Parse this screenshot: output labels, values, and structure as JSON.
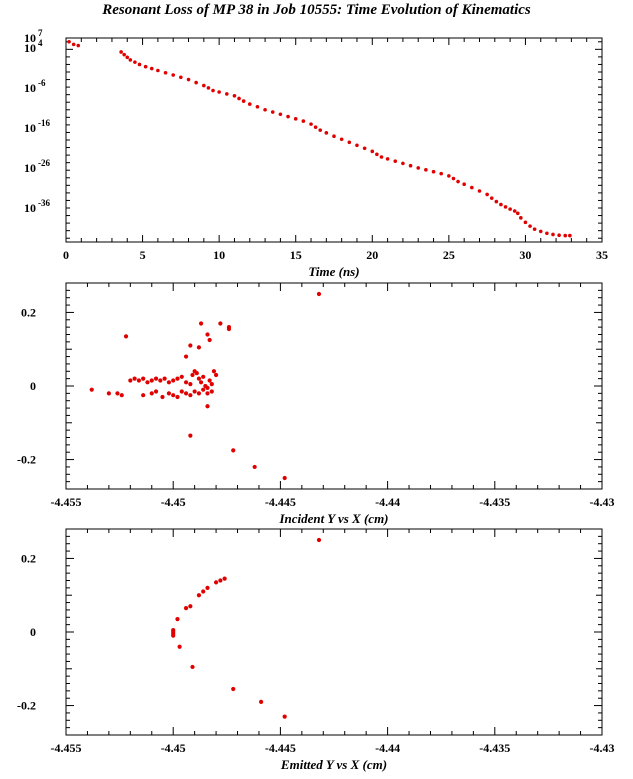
{
  "title": "Resonant Loss of MP 38 in Job 10555: Time Evolution of Kinematics",
  "colors": {
    "points": "#e00000",
    "axes": "#000000"
  },
  "chart_data": [
    {
      "type": "scatter",
      "name": "time_plot",
      "xlabel": "Time (ns)",
      "ylabel": "",
      "y_scale": "log",
      "xlim": [
        0,
        35
      ],
      "ylim_log10": [
        -47,
        7
      ],
      "x_ticks": [
        "0",
        "5",
        "10",
        "15",
        "20",
        "25",
        "30",
        "35"
      ],
      "y_ticks": [
        {
          "base": "10",
          "exp": "7"
        },
        {
          "base": "10",
          "exp": "4"
        },
        {
          "base": "10",
          "exp": "-6"
        },
        {
          "base": "10",
          "exp": "-16"
        },
        {
          "base": "10",
          "exp": "-26"
        },
        {
          "base": "10",
          "exp": "-36"
        }
      ],
      "points_log10": [
        [
          0.2,
          6.0
        ],
        [
          0.5,
          5.3
        ],
        [
          0.8,
          5.0
        ],
        [
          3.6,
          3.3
        ],
        [
          3.8,
          2.6
        ],
        [
          4.0,
          1.9
        ],
        [
          4.2,
          1.2
        ],
        [
          4.5,
          0.6
        ],
        [
          4.8,
          0.0
        ],
        [
          5.2,
          -0.6
        ],
        [
          5.6,
          -1.1
        ],
        [
          6.0,
          -1.6
        ],
        [
          6.5,
          -2.2
        ],
        [
          7.0,
          -2.8
        ],
        [
          7.5,
          -3.4
        ],
        [
          8.0,
          -4.0
        ],
        [
          8.5,
          -4.8
        ],
        [
          9.0,
          -5.6
        ],
        [
          9.3,
          -6.2
        ],
        [
          9.6,
          -6.9
        ],
        [
          10.0,
          -7.3
        ],
        [
          10.5,
          -7.8
        ],
        [
          11.0,
          -8.3
        ],
        [
          11.3,
          -9.0
        ],
        [
          11.6,
          -9.7
        ],
        [
          12.0,
          -10.5
        ],
        [
          12.5,
          -11.2
        ],
        [
          13.0,
          -12.0
        ],
        [
          13.5,
          -12.6
        ],
        [
          14.0,
          -13.2
        ],
        [
          14.5,
          -13.8
        ],
        [
          15.0,
          -14.4
        ],
        [
          15.5,
          -15.0
        ],
        [
          16.0,
          -15.8
        ],
        [
          16.3,
          -16.6
        ],
        [
          16.6,
          -17.4
        ],
        [
          17.0,
          -18.1
        ],
        [
          17.5,
          -19.0
        ],
        [
          18.0,
          -19.8
        ],
        [
          18.5,
          -20.6
        ],
        [
          19.0,
          -21.4
        ],
        [
          19.5,
          -22.2
        ],
        [
          20.0,
          -23.0
        ],
        [
          20.3,
          -23.8
        ],
        [
          20.6,
          -24.5
        ],
        [
          21.0,
          -25.0
        ],
        [
          21.5,
          -25.6
        ],
        [
          22.0,
          -26.2
        ],
        [
          22.5,
          -26.8
        ],
        [
          23.0,
          -27.4
        ],
        [
          23.5,
          -27.9
        ],
        [
          24.0,
          -28.4
        ],
        [
          24.5,
          -28.9
        ],
        [
          25.0,
          -29.5
        ],
        [
          25.3,
          -30.2
        ],
        [
          25.6,
          -31.0
        ],
        [
          26.0,
          -31.7
        ],
        [
          26.5,
          -32.6
        ],
        [
          27.0,
          -33.5
        ],
        [
          27.5,
          -34.4
        ],
        [
          27.8,
          -35.4
        ],
        [
          28.1,
          -36.3
        ],
        [
          28.4,
          -37.1
        ],
        [
          28.7,
          -37.7
        ],
        [
          29.0,
          -38.3
        ],
        [
          29.3,
          -38.8
        ],
        [
          29.5,
          -39.4
        ],
        [
          29.7,
          -40.6
        ],
        [
          30.0,
          -41.8
        ],
        [
          30.3,
          -42.8
        ],
        [
          30.6,
          -43.6
        ],
        [
          31.0,
          -44.2
        ],
        [
          31.4,
          -44.7
        ],
        [
          31.8,
          -45.0
        ],
        [
          32.2,
          -45.2
        ],
        [
          32.6,
          -45.3
        ],
        [
          32.9,
          -45.3
        ]
      ]
    },
    {
      "type": "scatter",
      "name": "incident_plot",
      "xlabel": "Incident Y vs X (cm)",
      "ylabel": "",
      "xlim": [
        -4.455,
        -4.43
      ],
      "ylim": [
        -0.28,
        0.28
      ],
      "x_ticks": [
        -4.455,
        -4.45,
        -4.445,
        -4.44,
        -4.435,
        -4.43
      ],
      "x_tick_labels": [
        "-4.455",
        "-4.45",
        "-4.445",
        "-4.44",
        "-4.435",
        "-4.43"
      ],
      "y_ticks": [
        0.2,
        0,
        -0.2
      ],
      "y_tick_labels": [
        "0.2",
        "0",
        "-0.2"
      ],
      "points": [
        [
          -4.4432,
          0.25
        ],
        [
          -4.4522,
          0.135
        ],
        [
          -4.4487,
          0.17
        ],
        [
          -4.4478,
          0.17
        ],
        [
          -4.4474,
          0.16
        ],
        [
          -4.4474,
          0.155
        ],
        [
          -4.4484,
          0.14
        ],
        [
          -4.4483,
          0.125
        ],
        [
          -4.4488,
          0.105
        ],
        [
          -4.4492,
          0.11
        ],
        [
          -4.4494,
          0.08
        ],
        [
          -4.4538,
          -0.01
        ],
        [
          -4.453,
          -0.02
        ],
        [
          -4.4524,
          -0.025
        ],
        [
          -4.4526,
          -0.02
        ],
        [
          -4.452,
          0.015
        ],
        [
          -4.4518,
          0.02
        ],
        [
          -4.4516,
          0.015
        ],
        [
          -4.4514,
          0.02
        ],
        [
          -4.4512,
          0.01
        ],
        [
          -4.451,
          0.015
        ],
        [
          -4.4508,
          0.02
        ],
        [
          -4.4506,
          0.015
        ],
        [
          -4.4504,
          0.02
        ],
        [
          -4.4502,
          0.01
        ],
        [
          -4.45,
          0.015
        ],
        [
          -4.4498,
          0.02
        ],
        [
          -4.4496,
          0.025
        ],
        [
          -4.4494,
          0.01
        ],
        [
          -4.4492,
          0.005
        ],
        [
          -4.4491,
          0.03
        ],
        [
          -4.449,
          0.04
        ],
        [
          -4.4489,
          0.035
        ],
        [
          -4.4488,
          0.02
        ],
        [
          -4.4487,
          0.01
        ],
        [
          -4.4486,
          0.025
        ],
        [
          -4.4485,
          0.0
        ],
        [
          -4.4484,
          -0.005
        ],
        [
          -4.4483,
          0.015
        ],
        [
          -4.4482,
          0.005
        ],
        [
          -4.4481,
          0.04
        ],
        [
          -4.448,
          0.03
        ],
        [
          -4.4502,
          -0.02
        ],
        [
          -4.45,
          -0.025
        ],
        [
          -4.4498,
          -0.03
        ],
        [
          -4.4496,
          -0.015
        ],
        [
          -4.4494,
          -0.02
        ],
        [
          -4.4492,
          -0.025
        ],
        [
          -4.449,
          -0.015
        ],
        [
          -4.4488,
          -0.02
        ],
        [
          -4.4486,
          -0.01
        ],
        [
          -4.4484,
          -0.02
        ],
        [
          -4.4482,
          -0.015
        ],
        [
          -4.451,
          -0.02
        ],
        [
          -4.4514,
          -0.025
        ],
        [
          -4.4508,
          -0.015
        ],
        [
          -4.4505,
          -0.03
        ],
        [
          -4.4484,
          -0.055
        ],
        [
          -4.4492,
          -0.135
        ],
        [
          -4.4472,
          -0.175
        ],
        [
          -4.4462,
          -0.22
        ],
        [
          -4.4448,
          -0.25
        ]
      ]
    },
    {
      "type": "scatter",
      "name": "emitted_plot",
      "xlabel": "Emitted Y vs X (cm)",
      "ylabel": "",
      "xlim": [
        -4.455,
        -4.43
      ],
      "ylim": [
        -0.28,
        0.28
      ],
      "x_ticks": [
        -4.455,
        -4.45,
        -4.445,
        -4.44,
        -4.435,
        -4.43
      ],
      "x_tick_labels": [
        "-4.455",
        "-4.45",
        "-4.445",
        "-4.44",
        "-4.435",
        "-4.43"
      ],
      "y_ticks": [
        0.2,
        0,
        -0.2
      ],
      "y_tick_labels": [
        "0.2",
        "0",
        "-0.2"
      ],
      "points": [
        [
          -4.4432,
          0.25
        ],
        [
          -4.4476,
          0.145
        ],
        [
          -4.4478,
          0.14
        ],
        [
          -4.448,
          0.135
        ],
        [
          -4.4484,
          0.12
        ],
        [
          -4.4486,
          0.11
        ],
        [
          -4.4488,
          0.1
        ],
        [
          -4.4492,
          0.07
        ],
        [
          -4.4494,
          0.065
        ],
        [
          -4.4498,
          0.035
        ],
        [
          -4.45,
          0.005
        ],
        [
          -4.45,
          0.0
        ],
        [
          -4.45,
          -0.005
        ],
        [
          -4.45,
          -0.01
        ],
        [
          -4.4497,
          -0.04
        ],
        [
          -4.4491,
          -0.095
        ],
        [
          -4.4472,
          -0.155
        ],
        [
          -4.4459,
          -0.19
        ],
        [
          -4.4448,
          -0.23
        ]
      ]
    }
  ]
}
